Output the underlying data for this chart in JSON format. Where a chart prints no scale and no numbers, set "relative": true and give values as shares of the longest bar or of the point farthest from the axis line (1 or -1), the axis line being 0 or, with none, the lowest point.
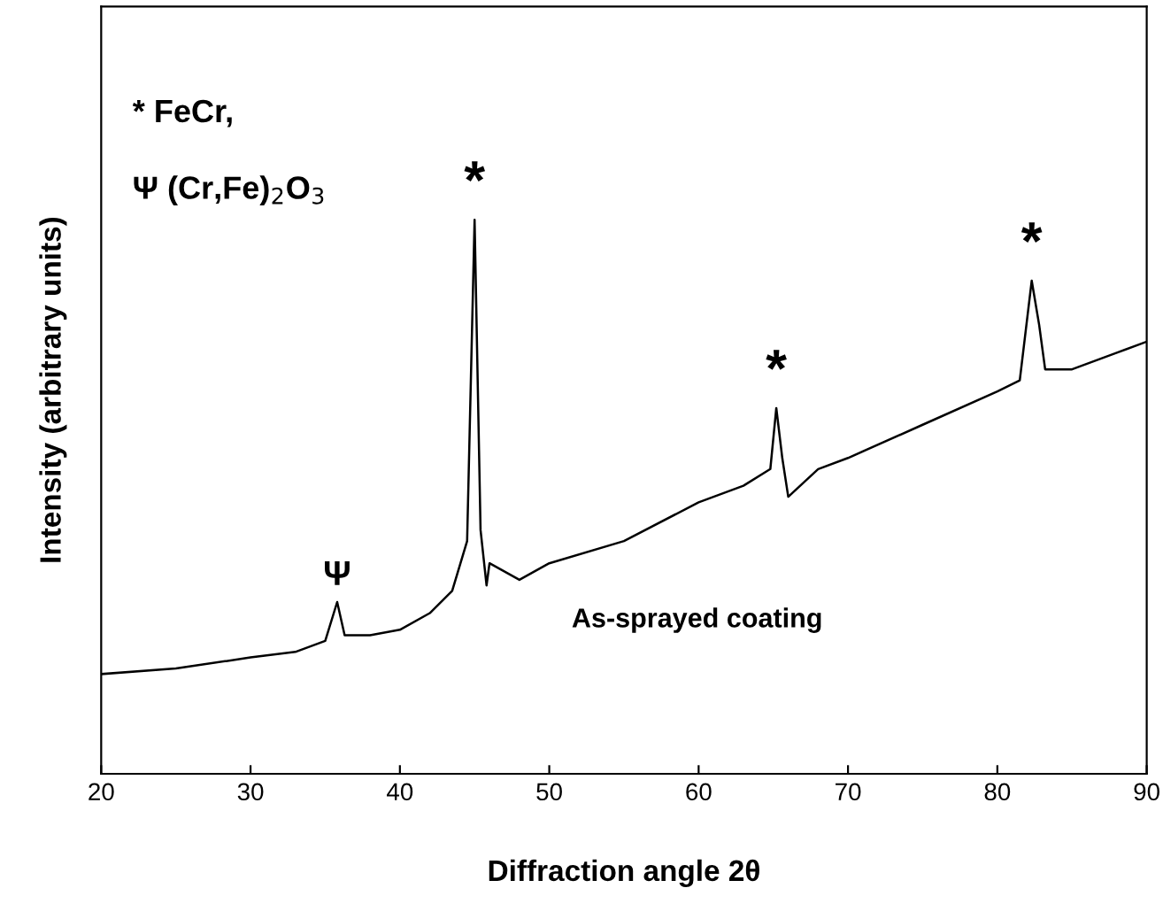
{
  "chart_data": {
    "type": "line",
    "relative": true,
    "xlabel": "Diffraction angle 2θ",
    "ylabel": "Intensity (arbitrary units)",
    "xlim": [
      20,
      90
    ],
    "xticks": [
      20,
      30,
      40,
      50,
      60,
      70,
      80,
      90
    ],
    "tick_labels": "x",
    "grid": false,
    "legend": false,
    "marker": "none",
    "line_style": "solid",
    "x": [
      20,
      25,
      30,
      33,
      35,
      35.8,
      36.3,
      38,
      40,
      42,
      43.5,
      44.5,
      45,
      45.4,
      45.8,
      46,
      48,
      50,
      55,
      60,
      63,
      64.8,
      65.2,
      65.6,
      66,
      68,
      70,
      75,
      80,
      81.5,
      82.3,
      82.8,
      83.2,
      85,
      88,
      90
    ],
    "series": [
      {
        "color": "#000000",
        "values": [
          0.18,
          0.19,
          0.21,
          0.22,
          0.24,
          0.31,
          0.25,
          0.25,
          0.26,
          0.29,
          0.33,
          0.42,
          1,
          0.44,
          0.34,
          0.38,
          0.35,
          0.38,
          0.42,
          0.49,
          0.52,
          0.55,
          0.66,
          0.57,
          0.5,
          0.55,
          0.57,
          0.63,
          0.69,
          0.71,
          0.89,
          0.81,
          0.73,
          0.73,
          0.76,
          0.78
        ]
      }
    ],
    "annotations": [
      {
        "text": "*",
        "x": 45,
        "y": 1
      },
      {
        "text": "*",
        "x": 65.2,
        "y": 0.66
      },
      {
        "text": "*",
        "x": 82.3,
        "y": 0.89
      },
      {
        "text": "Ψ",
        "x": 35.8,
        "y": 0.31
      },
      "* FeCr,",
      "Ψ (Cr,Fe)$_{2}$O$_{3}$",
      "As-sprayed coating"
    ]
  }
}
